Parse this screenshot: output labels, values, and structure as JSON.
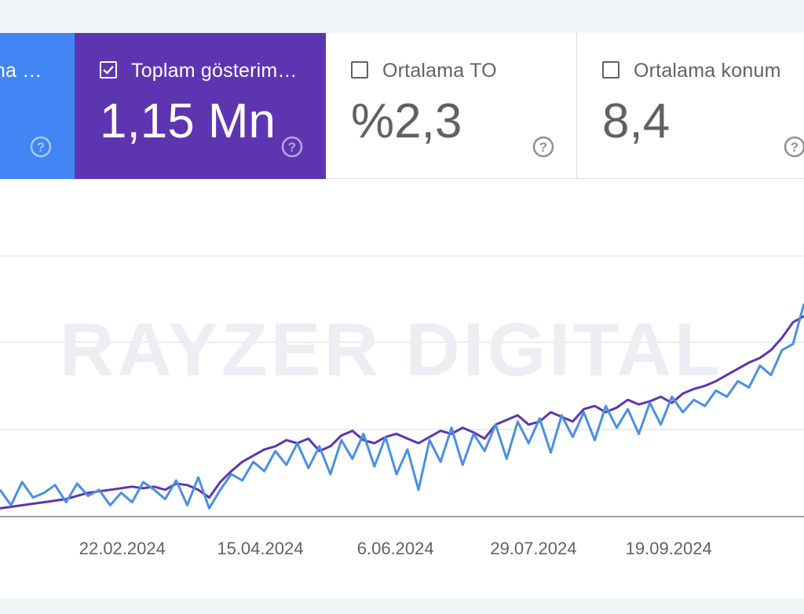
{
  "metrics": {
    "clicks": {
      "label": "Toplam tıklama sayısı",
      "label_visible": "ma …",
      "color": "#4285f4",
      "selected": true
    },
    "impressions": {
      "label": "Toplam gösterim…",
      "value": "1,15 Mn",
      "color": "#5e35b1",
      "selected": true
    },
    "ctr": {
      "label": "Ortalama TO",
      "value": "%2,3",
      "selected": false
    },
    "position": {
      "label": "Ortalama konum",
      "value": "8,4",
      "selected": false
    }
  },
  "watermark": "RAYZER DIGITAL",
  "chart_data": {
    "type": "line",
    "x_tick_labels": [
      "22.02.2024",
      "15.04.2024",
      "6.06.2024",
      "29.07.2024",
      "19.09.2024"
    ],
    "x_range": [
      "2024-01-06",
      "2024-11-10"
    ],
    "grid": true,
    "legend": "none",
    "series": [
      {
        "name": "Toplam gösterim",
        "color": "#5e35b1",
        "values": [
          18,
          19,
          20,
          21,
          22,
          23,
          24,
          26,
          28,
          29,
          30,
          31,
          32,
          31,
          32,
          30,
          34,
          33,
          30,
          25,
          35,
          42,
          48,
          52,
          56,
          58,
          62,
          60,
          63,
          55,
          58,
          65,
          68,
          62,
          60,
          64,
          66,
          63,
          60,
          64,
          68,
          66,
          70,
          67,
          63,
          72,
          75,
          78,
          72,
          74,
          80,
          77,
          74,
          82,
          84,
          80,
          83,
          88,
          85,
          87,
          90,
          86,
          92,
          95,
          97,
          100,
          104,
          108,
          112,
          115,
          120,
          128,
          138,
          142
        ]
      },
      {
        "name": "Toplam tıklama sayısı",
        "color": "#4a90e2",
        "values": [
          30,
          20,
          35,
          25,
          28,
          33,
          22,
          34,
          26,
          30,
          20,
          28,
          22,
          35,
          30,
          24,
          36,
          20,
          38,
          18,
          30,
          40,
          36,
          48,
          42,
          55,
          46,
          60,
          44,
          58,
          40,
          62,
          50,
          66,
          45,
          64,
          40,
          56,
          30,
          62,
          48,
          70,
          46,
          66,
          55,
          72,
          50,
          74,
          60,
          76,
          54,
          78,
          64,
          80,
          62,
          84,
          70,
          82,
          66,
          86,
          72,
          90,
          80,
          88,
          84,
          94,
          90,
          100,
          96,
          110,
          104,
          120,
          124,
          150
        ]
      }
    ]
  }
}
